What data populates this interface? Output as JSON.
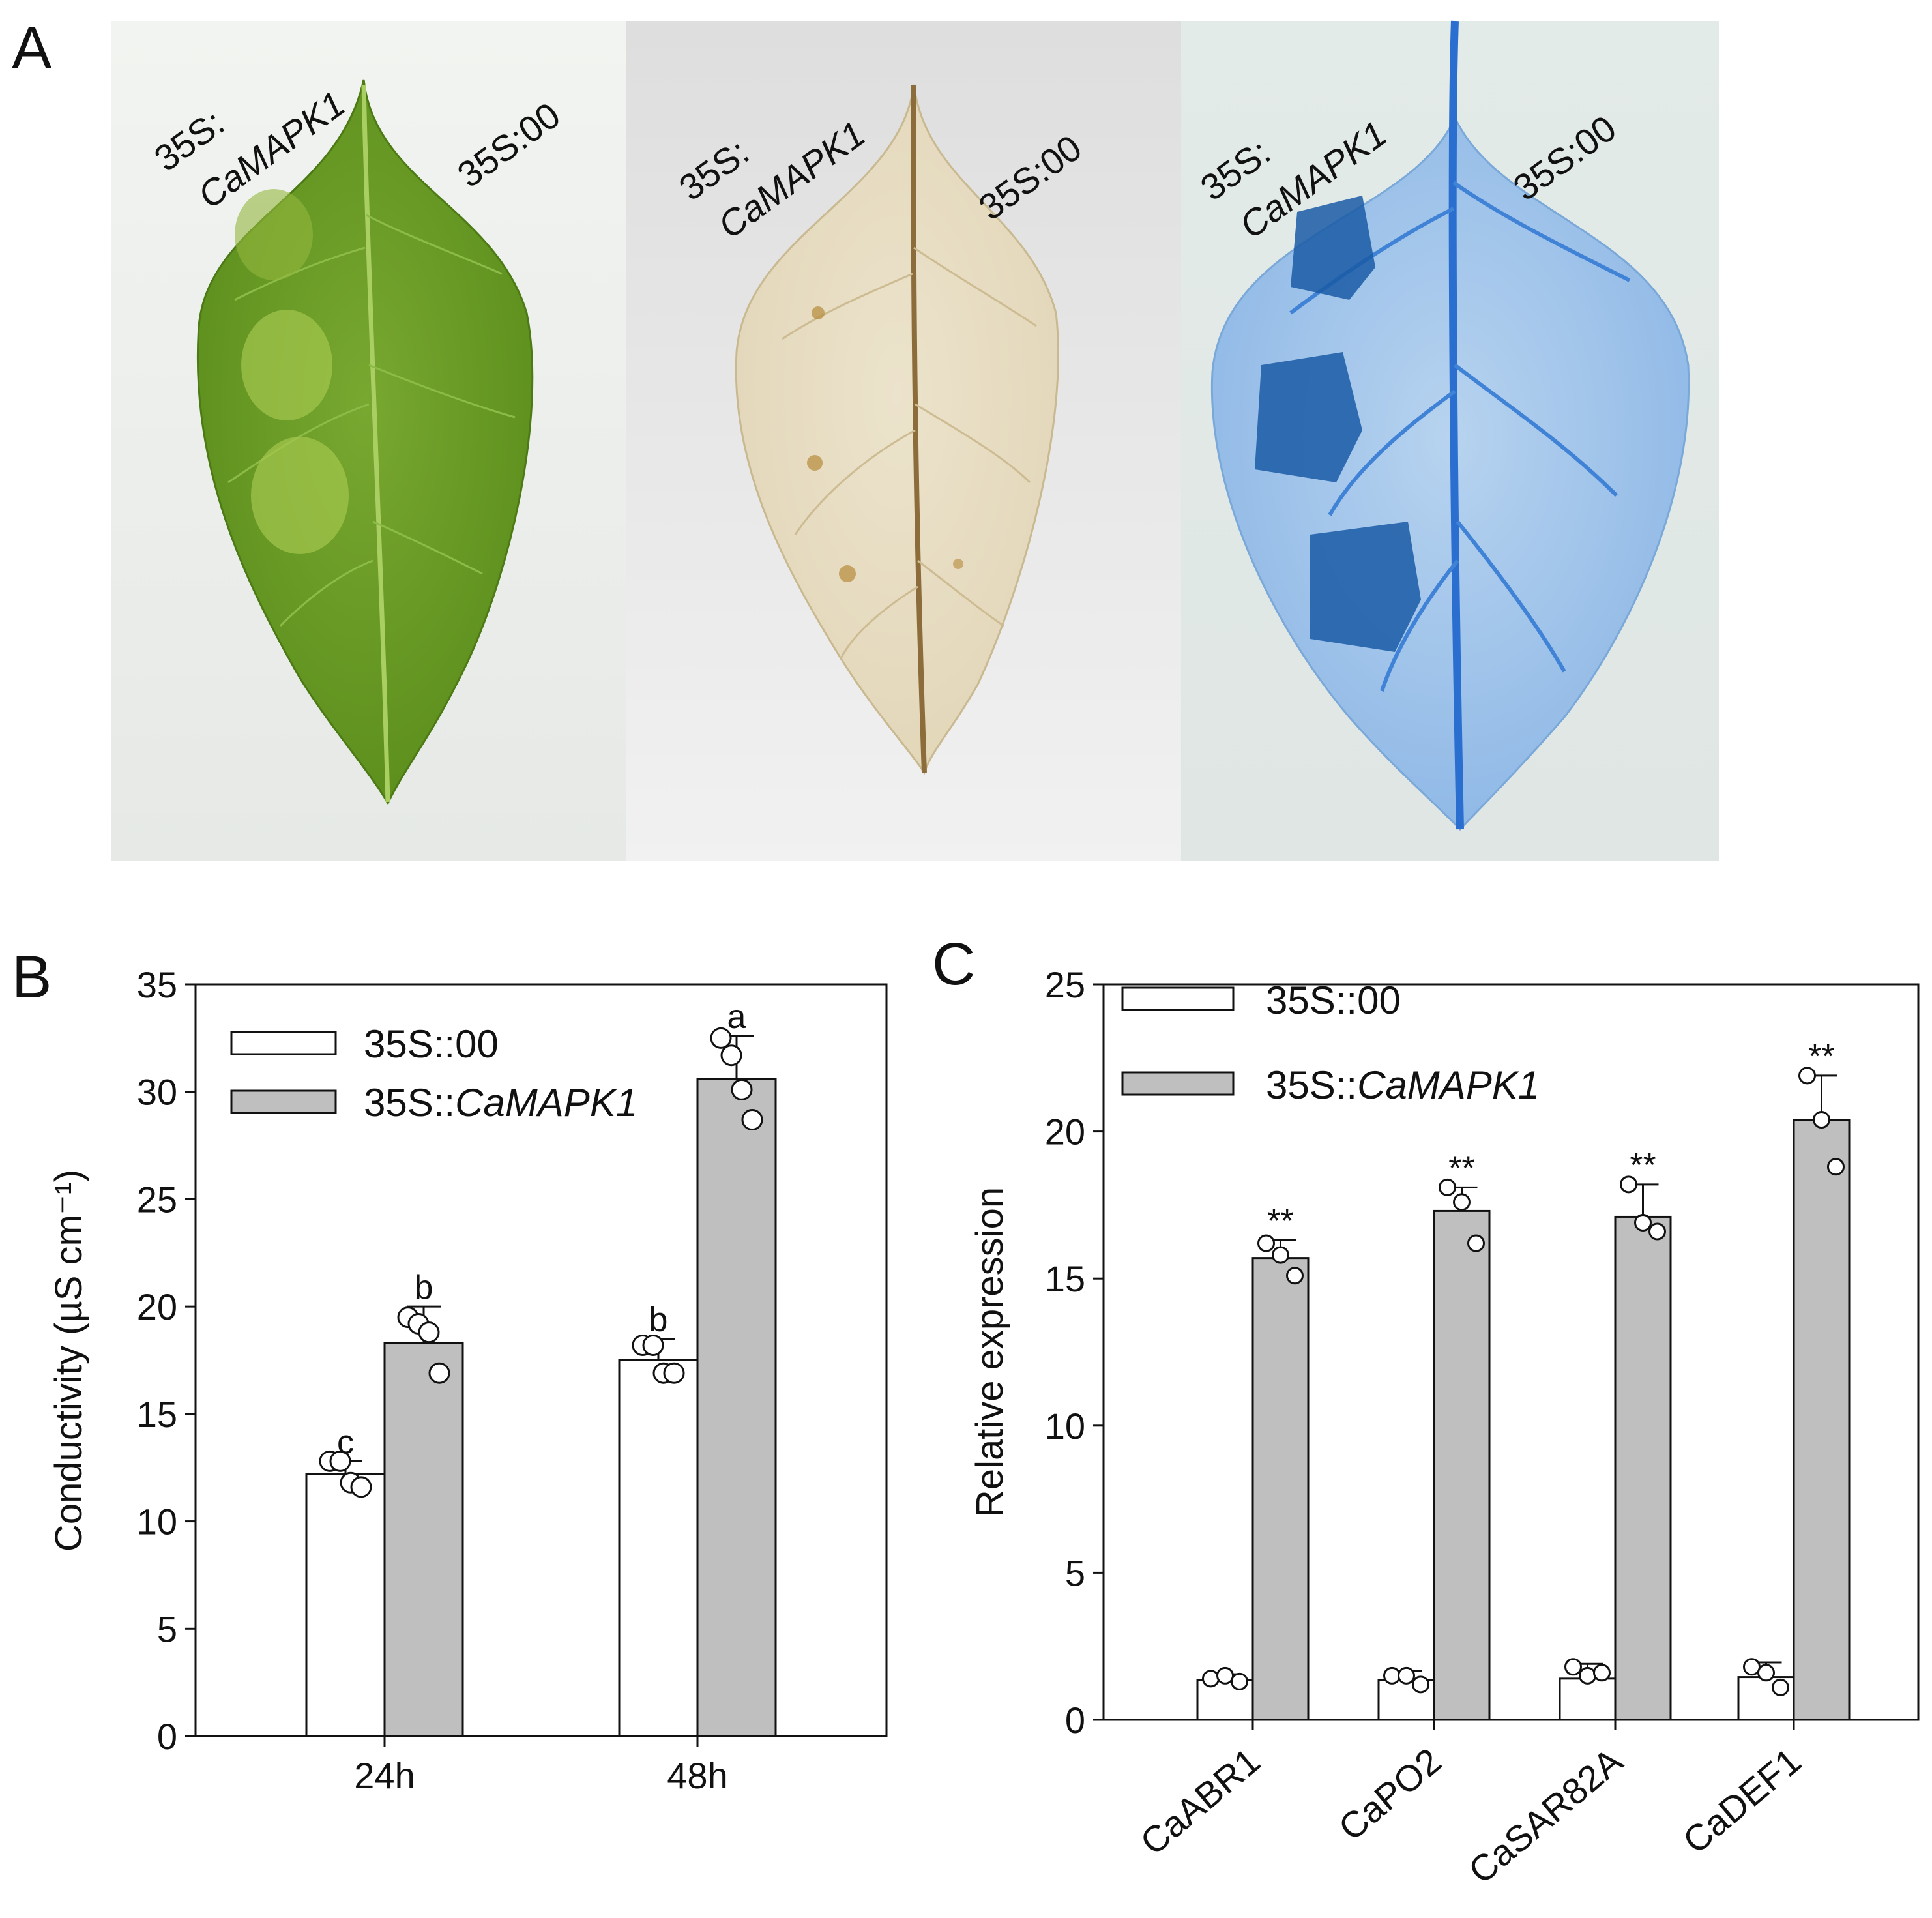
{
  "panels": {
    "a": "A",
    "b": "B",
    "c": "C"
  },
  "colors": {
    "control_fill": "#ffffff",
    "treatment_fill": "#bfbfbf",
    "stroke": "#111111"
  },
  "photo": {
    "leaves": [
      {
        "label_top": "35S:",
        "label_gene": "CaMAPK1",
        "label_right": "35S:00",
        "stain": "none"
      },
      {
        "label_top": "35S:",
        "label_gene": "CaMAPK1",
        "label_right": "35S:00",
        "stain": "DAB"
      },
      {
        "label_top": "35S:",
        "label_gene": "CaMAPK1",
        "label_right": "35S:00",
        "stain": "trypan blue"
      }
    ]
  },
  "chart_data": [
    {
      "type": "bar",
      "panel": "B",
      "categories": [
        "24h",
        "48h"
      ],
      "series": [
        {
          "name": "35S::00",
          "values": [
            12.2,
            17.5
          ],
          "errors": [
            0.6,
            1.0
          ],
          "points": [
            [
              12.8,
              12.8,
              11.8,
              11.6
            ],
            [
              18.2,
              18.2,
              16.9,
              16.9
            ]
          ],
          "letters": [
            "c",
            "b"
          ]
        },
        {
          "name": "35S::CaMAPK1",
          "name_prefix": "35S::",
          "name_gene": "CaMAPK1",
          "values": [
            18.3,
            30.6
          ],
          "errors": [
            1.7,
            2.0
          ],
          "points": [
            [
              19.5,
              19.2,
              18.8,
              16.9
            ],
            [
              32.5,
              31.7,
              30.1,
              28.7
            ]
          ],
          "letters": [
            "b",
            "a"
          ]
        }
      ],
      "ylabel": "Conductivity (µS cm⁻¹)",
      "ylim": [
        0,
        35
      ],
      "yticks": [
        0,
        5,
        10,
        15,
        20,
        25,
        30,
        35
      ],
      "legend": "top-left",
      "grid": false
    },
    {
      "type": "bar",
      "panel": "C",
      "categories": [
        "CaABR1",
        "CaPO2",
        "CaSAR82A",
        "CaDEF1"
      ],
      "series": [
        {
          "name": "35S::00",
          "values": [
            1.35,
            1.35,
            1.4,
            1.45
          ],
          "errors": [
            0.2,
            0.3,
            0.5,
            0.5
          ],
          "points": [
            [
              1.4,
              1.5,
              1.3
            ],
            [
              1.5,
              1.5,
              1.2
            ],
            [
              1.8,
              1.5,
              1.6
            ],
            [
              1.8,
              1.6,
              1.1
            ]
          ]
        },
        {
          "name": "35S::CaMAPK1",
          "name_prefix": "35S::",
          "name_gene": "CaMAPK1",
          "values": [
            15.7,
            17.3,
            17.1,
            20.4
          ],
          "errors": [
            0.6,
            0.8,
            1.1,
            1.5
          ],
          "points": [
            [
              16.2,
              15.8,
              15.1
            ],
            [
              18.1,
              17.6,
              16.2
            ],
            [
              18.2,
              16.9,
              16.6
            ],
            [
              21.9,
              20.4,
              18.8
            ]
          ],
          "marks": [
            "**",
            "**",
            "**",
            "**"
          ]
        }
      ],
      "ylabel": "Relative expression",
      "ylim": [
        0,
        25
      ],
      "yticks": [
        0,
        5,
        10,
        15,
        20,
        25
      ],
      "legend": "top-left",
      "grid": false
    }
  ]
}
